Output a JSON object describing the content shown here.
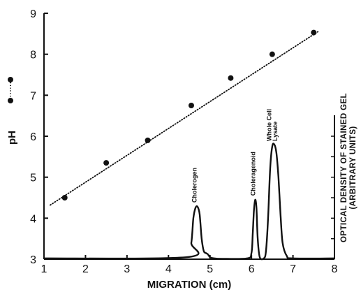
{
  "chart_data": {
    "type": "line",
    "xlabel": "MIGRATION (cm)",
    "ylabel": "pH",
    "y2label_line1": "OPTICAL DENSITY OF STAINED GEL",
    "y2label_line2": "(ARBITRARY UNITS)",
    "xlim": [
      1,
      8
    ],
    "ylim": [
      3,
      9
    ],
    "x_ticks": [
      "1",
      "2",
      "3",
      "4",
      "5",
      "6",
      "7",
      "8"
    ],
    "y_ticks": [
      "3",
      "4",
      "5",
      "6",
      "7",
      "8",
      "9"
    ],
    "grid": false,
    "legend": {
      "position": "left-axis",
      "marker": "point-dot-point"
    },
    "series": [
      {
        "style": "dotted-with-points",
        "x": [
          1.5,
          2.5,
          3.5,
          4.55,
          5.5,
          6.5,
          7.5
        ],
        "y": [
          4.5,
          5.35,
          5.9,
          6.75,
          7.42,
          8.0,
          8.53
        ],
        "fit_line": {
          "x": [
            1.15,
            7.6
          ],
          "y": [
            4.32,
            8.55
          ]
        }
      },
      {
        "style": "solid",
        "x": [
          1.0,
          4.45,
          4.55,
          4.6,
          4.65,
          4.7,
          4.75,
          4.8,
          4.85,
          4.9,
          4.95,
          5.0,
          5.1,
          5.3,
          5.9,
          6.0,
          6.03,
          6.06,
          6.09,
          6.12,
          6.15,
          6.2,
          6.3,
          6.35,
          6.4,
          6.45,
          6.5,
          6.55,
          6.6,
          6.65,
          6.7,
          6.75,
          6.85,
          7.0,
          8.0
        ],
        "y": [
          3.02,
          3.05,
          3.4,
          4.0,
          4.25,
          4.28,
          4.1,
          3.5,
          3.2,
          3.15,
          3.12,
          3.05,
          3.02,
          3.01,
          3.02,
          3.15,
          3.6,
          4.2,
          4.45,
          4.25,
          3.5,
          3.05,
          3.02,
          3.2,
          4.0,
          5.2,
          5.75,
          5.8,
          5.6,
          5.0,
          4.1,
          3.4,
          3.08,
          3.02,
          3.02
        ]
      }
    ],
    "annotations": [
      {
        "text": "Cholerogen",
        "x": 4.68,
        "y": 4.38
      },
      {
        "text": "Choleragenoid",
        "x": 6.09,
        "y": 4.55
      },
      {
        "text": "Whole Cell",
        "x": 6.48,
        "y": 5.88,
        "line": 1
      },
      {
        "text": "Lysate",
        "x": 6.62,
        "y": 5.88,
        "line": 2
      }
    ]
  }
}
